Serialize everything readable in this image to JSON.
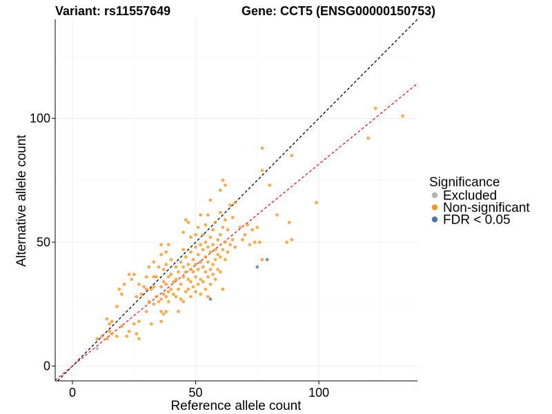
{
  "chart_data": {
    "type": "scatter",
    "title_left": "Variant: rs11557649",
    "title_right": "Gene: CCT5 (ENSG00000150753)",
    "xlabel": "Reference allele count",
    "ylabel": "Alternative allele count",
    "xlim": [
      -7,
      140
    ],
    "ylim": [
      -6,
      140
    ],
    "x_ticks": [
      0,
      50,
      100
    ],
    "y_ticks": [
      0,
      50,
      100
    ],
    "x_tick_labels": [
      "0",
      "50",
      "100"
    ],
    "y_tick_labels": [
      "0",
      "50",
      "100"
    ],
    "grid": true,
    "legend": {
      "title": "Significance",
      "placement": "right",
      "entries": [
        {
          "label": "Excluded",
          "color": "#b3b3b3"
        },
        {
          "label": "Non-significant",
          "color": "#f7941d"
        },
        {
          "label": "FDR < 0.05",
          "color": "#4a77a8"
        }
      ]
    },
    "reference_lines": [
      {
        "name": "identity",
        "slope": 1.0,
        "intercept": 0,
        "color": "#000000",
        "dash": "4,3"
      },
      {
        "name": "fit",
        "slope": 0.815,
        "intercept": 0,
        "color": "#e41a1c",
        "dash": "4,3"
      }
    ],
    "series": [
      {
        "name": "Excluded",
        "color": "#b3b3b3",
        "points": [
          [
            10,
            7
          ]
        ]
      },
      {
        "name": "FDR < 0.05",
        "color": "#4a77a8",
        "points": [
          [
            56,
            27
          ],
          [
            75,
            40
          ],
          [
            79,
            43
          ]
        ]
      },
      {
        "name": "Non-significant",
        "color": "#f7941d",
        "points": [
          [
            10,
            11
          ],
          [
            12,
            12
          ],
          [
            14,
            11
          ],
          [
            15,
            14
          ],
          [
            16,
            13
          ],
          [
            15,
            17
          ],
          [
            14,
            19
          ],
          [
            16,
            18
          ],
          [
            18,
            12
          ],
          [
            20,
            16
          ],
          [
            22,
            12
          ],
          [
            23,
            14
          ],
          [
            25,
            17
          ],
          [
            26,
            13
          ],
          [
            27,
            11
          ],
          [
            27,
            18
          ],
          [
            18,
            24
          ],
          [
            20,
            29
          ],
          [
            19,
            31
          ],
          [
            21,
            33
          ],
          [
            23,
            37
          ],
          [
            24,
            35
          ],
          [
            25,
            37
          ],
          [
            26,
            28
          ],
          [
            27,
            33
          ],
          [
            28,
            29
          ],
          [
            29,
            32
          ],
          [
            30,
            22
          ],
          [
            30,
            31
          ],
          [
            30,
            36
          ],
          [
            31,
            26
          ],
          [
            31,
            40
          ],
          [
            32,
            17
          ],
          [
            32,
            31
          ],
          [
            33,
            25
          ],
          [
            33,
            32
          ],
          [
            33,
            36
          ],
          [
            33,
            42
          ],
          [
            34,
            28
          ],
          [
            34,
            36
          ],
          [
            35,
            26
          ],
          [
            35,
            40
          ],
          [
            36,
            18
          ],
          [
            36,
            22
          ],
          [
            36,
            27
          ],
          [
            36,
            32
          ],
          [
            36,
            45
          ],
          [
            36,
            49
          ],
          [
            37,
            21
          ],
          [
            37,
            29
          ],
          [
            37,
            34
          ],
          [
            37,
            39
          ],
          [
            38,
            22
          ],
          [
            38,
            28
          ],
          [
            38,
            33
          ],
          [
            38,
            41
          ],
          [
            38,
            46
          ],
          [
            39,
            26
          ],
          [
            39,
            30
          ],
          [
            39,
            36
          ],
          [
            39,
            49
          ],
          [
            40,
            31
          ],
          [
            40,
            37
          ],
          [
            40,
            43
          ],
          [
            41,
            29
          ],
          [
            41,
            34
          ],
          [
            42,
            28
          ],
          [
            42,
            35
          ],
          [
            42,
            40
          ],
          [
            43,
            22
          ],
          [
            43,
            31
          ],
          [
            43,
            38
          ],
          [
            44,
            27
          ],
          [
            44,
            33
          ],
          [
            44,
            42
          ],
          [
            45,
            26
          ],
          [
            45,
            36
          ],
          [
            45,
            40
          ],
          [
            45,
            47
          ],
          [
            45,
            54
          ],
          [
            46,
            30
          ],
          [
            46,
            38
          ],
          [
            46,
            44
          ],
          [
            46,
            59
          ],
          [
            47,
            31
          ],
          [
            47,
            35
          ],
          [
            47,
            41
          ],
          [
            47,
            58
          ],
          [
            48,
            28
          ],
          [
            48,
            34
          ],
          [
            48,
            39
          ],
          [
            48,
            46
          ],
          [
            48,
            52
          ],
          [
            49,
            32
          ],
          [
            49,
            38
          ],
          [
            49,
            43
          ],
          [
            50,
            30
          ],
          [
            50,
            36
          ],
          [
            50,
            41
          ],
          [
            50,
            48
          ],
          [
            50,
            53
          ],
          [
            51,
            33
          ],
          [
            51,
            39
          ],
          [
            51,
            45
          ],
          [
            51,
            56
          ],
          [
            52,
            29
          ],
          [
            52,
            35
          ],
          [
            52,
            42
          ],
          [
            52,
            49
          ],
          [
            52,
            61
          ],
          [
            53,
            34
          ],
          [
            53,
            40
          ],
          [
            53,
            47
          ],
          [
            53,
            53
          ],
          [
            54,
            31
          ],
          [
            54,
            38
          ],
          [
            54,
            44
          ],
          [
            54,
            50
          ],
          [
            54,
            57
          ],
          [
            55,
            28
          ],
          [
            55,
            36
          ],
          [
            55,
            42
          ],
          [
            55,
            48
          ],
          [
            55,
            61
          ],
          [
            56,
            33
          ],
          [
            56,
            39
          ],
          [
            56,
            46
          ],
          [
            56,
            52
          ],
          [
            56,
            67
          ],
          [
            57,
            37
          ],
          [
            57,
            41
          ],
          [
            57,
            49
          ],
          [
            57,
            55
          ],
          [
            58,
            35
          ],
          [
            58,
            43
          ],
          [
            58,
            47
          ],
          [
            58,
            58
          ],
          [
            59,
            39
          ],
          [
            59,
            45
          ],
          [
            59,
            51
          ],
          [
            60,
            38
          ],
          [
            60,
            44
          ],
          [
            60,
            53
          ],
          [
            60,
            62
          ],
          [
            60,
            71
          ],
          [
            61,
            31
          ],
          [
            61,
            47
          ],
          [
            61,
            56
          ],
          [
            61,
            75
          ],
          [
            62,
            43
          ],
          [
            62,
            50
          ],
          [
            62,
            59
          ],
          [
            62,
            73
          ],
          [
            63,
            46
          ],
          [
            63,
            55
          ],
          [
            64,
            49
          ],
          [
            64,
            65
          ],
          [
            65,
            51
          ],
          [
            65,
            60
          ],
          [
            66,
            48
          ],
          [
            66,
            66
          ],
          [
            68,
            56
          ],
          [
            69,
            51
          ],
          [
            70,
            53
          ],
          [
            71,
            57
          ],
          [
            72,
            49
          ],
          [
            73,
            55
          ],
          [
            74,
            50
          ],
          [
            75,
            56
          ],
          [
            76,
            50
          ],
          [
            77,
            43
          ],
          [
            77,
            79
          ],
          [
            77,
            88
          ],
          [
            80,
            73
          ],
          [
            83,
            61
          ],
          [
            87,
            50
          ],
          [
            88,
            58
          ],
          [
            89,
            51
          ],
          [
            89,
            85
          ],
          [
            99,
            66
          ],
          [
            120,
            92
          ],
          [
            123,
            104
          ],
          [
            134,
            101
          ]
        ]
      }
    ]
  }
}
